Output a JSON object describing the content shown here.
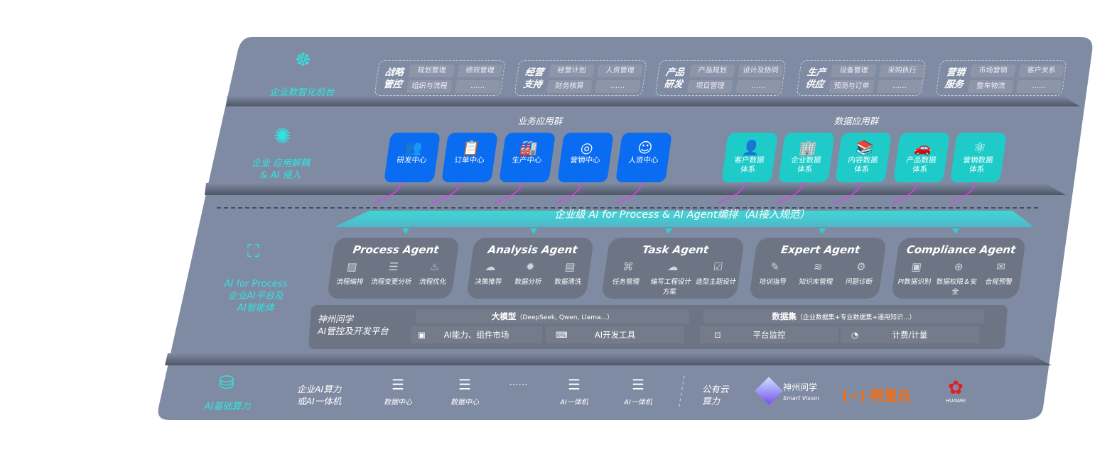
{
  "colors": {
    "board": "#7f8ba3",
    "accent_cyan": "#2ee6e0",
    "business_app": "#0a6cf0",
    "data_app": "#1ecbc9",
    "agent_card": "#6d7484",
    "arrow": "#e040e8",
    "aliyun": "#ff6a00",
    "huawei": "#e02020"
  },
  "layer1": {
    "label": "企业数智化前台",
    "icon": "brain-icon",
    "groups": [
      {
        "title": "战略管控",
        "items": [
          "规划管理",
          "绩效管理",
          "组织与流程",
          "……"
        ]
      },
      {
        "title": "经营支持",
        "items": [
          "经营计划",
          "人资管理",
          "财务核算",
          "……"
        ]
      },
      {
        "title": "产品研发",
        "items": [
          "产品规划",
          "设计及协同",
          "项目管理",
          "……"
        ]
      },
      {
        "title": "生产供应",
        "items": [
          "设备管理",
          "采购执行",
          "预测与订单",
          "……"
        ]
      },
      {
        "title": "营销服务",
        "items": [
          "市场营销",
          "客户关系",
          "整车物流",
          "……"
        ]
      }
    ]
  },
  "layer2": {
    "label_line1": "企业 应用解耦",
    "label_line2": "& AI 侵入",
    "icon": "molecule-icon",
    "business_title": "业务应用群",
    "business_apps": [
      {
        "label": "研发中心",
        "icon": "users-icon"
      },
      {
        "label": "订单中心",
        "icon": "clipboard-icon"
      },
      {
        "label": "生产中心",
        "icon": "factory-icon"
      },
      {
        "label": "营销中心",
        "icon": "target-icon"
      },
      {
        "label": "人资中心",
        "icon": "person-icon"
      }
    ],
    "data_title": "数据应用群",
    "data_apps": [
      {
        "line1": "客户数据",
        "line2": "体系",
        "icon": "user-icon"
      },
      {
        "line1": "企业数据",
        "line2": "体系",
        "icon": "building-icon"
      },
      {
        "line1": "内容数据",
        "line2": "体系",
        "icon": "books-icon"
      },
      {
        "line1": "产品数据",
        "line2": "体系",
        "icon": "car-icon"
      },
      {
        "line1": "营销数据",
        "line2": "体系",
        "icon": "atom-icon"
      }
    ]
  },
  "banner": "企业级 AI for Process & AI Agent编排（AI接入规范）",
  "layer3": {
    "label_line1": "AI for Process",
    "label_line2": "企业AI平台及",
    "label_line3": "AI智能体",
    "icon": "face-scan-icon",
    "agents": [
      {
        "title": "Process Agent",
        "items": [
          "流程编排",
          "流程变更分析",
          "流程优化"
        ]
      },
      {
        "title": "Analysis Agent",
        "items": [
          "决策推荐",
          "数据分析",
          "数据清洗"
        ]
      },
      {
        "title": "Task Agent",
        "items": [
          "任务管理",
          "编写工程设计方案",
          "造型主题设计"
        ]
      },
      {
        "title": "Expert Agent",
        "items": [
          "培训指导",
          "知识库管理",
          "问题诊断"
        ]
      },
      {
        "title": "Compliance Agent",
        "items": [
          "PI数据识别",
          "数据权限＆安全",
          "合规预警"
        ]
      }
    ],
    "platform": {
      "name_line1": "神州问学",
      "name_line2": "AI管控及开发平台",
      "model": "大模型",
      "model_note": "（DeepSeek, Qwen, Llama...）",
      "dataset": "数据集",
      "dataset_note": "（企业数据集+专业数据集+通用知识...）",
      "tools": [
        "AI能力、组件市场",
        "AI开发工具",
        "平台监控",
        "计费/计量"
      ]
    }
  },
  "layer4": {
    "label": "AI基础算力",
    "icon": "database-icon",
    "private_line1": "企业AI算力",
    "private_line2": "或AI一体机",
    "items": [
      "数据中心",
      "数据中心",
      "……",
      "AI一体机",
      "AI一体机"
    ],
    "public_line1": "公有云",
    "public_line2": "算力",
    "logos": {
      "shenzhou": "神州问学",
      "shenzhou_sub": "Smart Vision",
      "aliyun": "阿里云",
      "huawei": "HUAWEI"
    }
  }
}
